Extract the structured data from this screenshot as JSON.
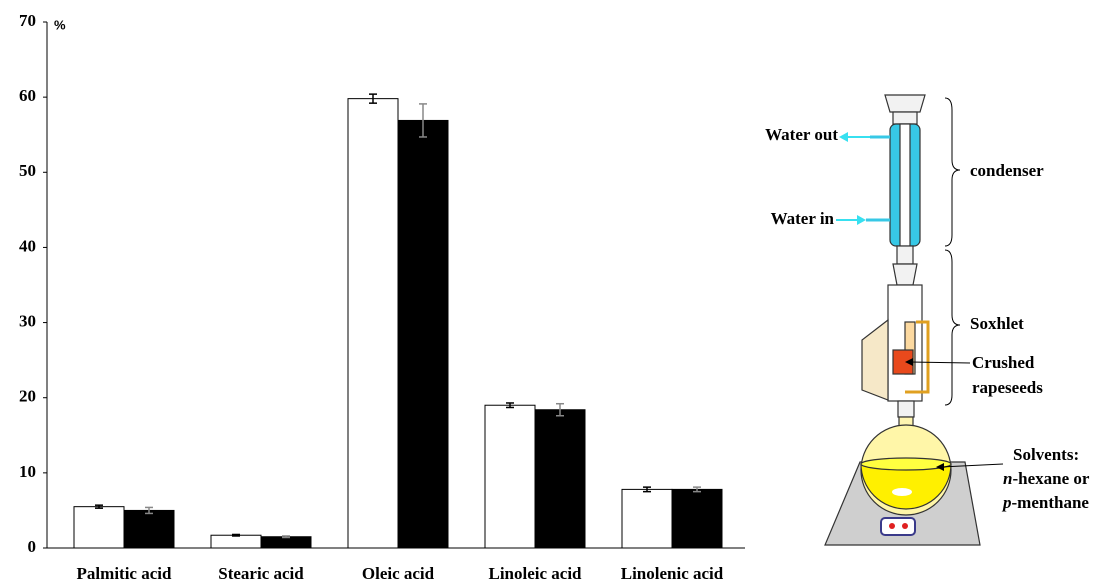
{
  "chart_data": {
    "type": "bar",
    "y_unit": "%",
    "categories": [
      "Palmitic acid",
      "Stearic acid",
      "Oleic acid",
      "Linoleic acid",
      "Linolenic acid"
    ],
    "series": [
      {
        "color": "#ffffff",
        "values": [
          5.5,
          1.7,
          59.8,
          19.0,
          7.8
        ],
        "errors": [
          0.2,
          0.1,
          0.6,
          0.3,
          0.3
        ]
      },
      {
        "color": "#000000",
        "values": [
          5.0,
          1.5,
          56.9,
          18.4,
          7.8
        ],
        "errors": [
          0.4,
          0.1,
          2.2,
          0.8,
          0.3
        ]
      }
    ],
    "edgecolor": "#000000",
    "ylim": [
      0,
      70
    ],
    "yticks": [
      0,
      10,
      20,
      30,
      40,
      50,
      60,
      70
    ],
    "grid": false
  },
  "diagram": {
    "water_out": "Water out",
    "water_in": "Water in",
    "condenser": "condenser",
    "soxhlet": "Soxhlet",
    "crushed": [
      "Crushed",
      "rapeseeds"
    ],
    "solvents": "Solvents:",
    "solvent_1": {
      "italic": "n",
      "rest": "-hexane or"
    },
    "solvent_2": {
      "italic": "p",
      "rest": "-menthane"
    }
  }
}
